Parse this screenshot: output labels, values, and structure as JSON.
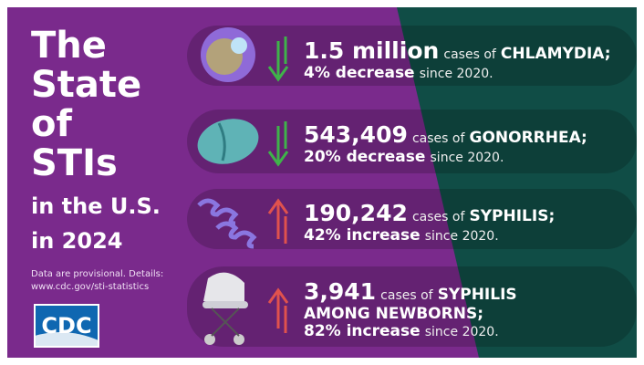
{
  "title_lines": [
    "The",
    "State",
    "of",
    "STIs",
    "in the U.S.",
    "in 2024"
  ],
  "note": [
    "Data are provisional. Details:",
    "www.cdc.gov/sti-statistics"
  ],
  "logo": "CDC",
  "rows": [
    {
      "number": "1.5 million",
      "cases": "cases of",
      "disease": "CHLAMYDIA;",
      "change": "4% decrease",
      "since": "since 2020."
    },
    {
      "number": "543,409",
      "cases": "cases of",
      "disease": "GONORRHEA;",
      "change": "20% decrease",
      "since": "since 2020."
    },
    {
      "number": "190,242",
      "cases": "cases of",
      "disease": "SYPHILIS;",
      "change": "42% increase",
      "since": "since 2020."
    },
    {
      "number": "3,941",
      "cases": "cases of",
      "disease": "SYPHILIS AMONG NEWBORNS;",
      "change": "82% increase",
      "since": "since 2020."
    }
  ]
}
